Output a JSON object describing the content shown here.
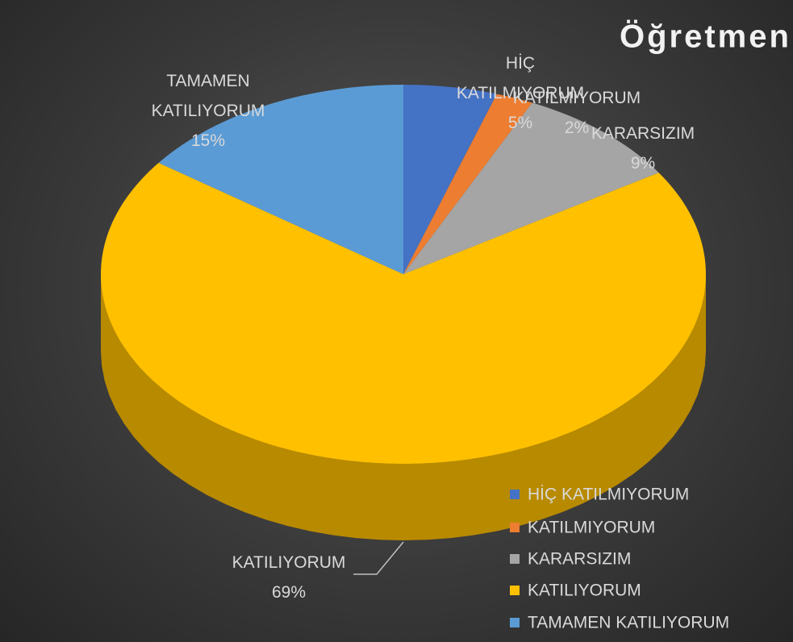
{
  "chart_data": {
    "type": "pie",
    "title": "Öğretmen",
    "categories": [
      "HİÇ KATILMIYORUM",
      "KATILMIYORUM",
      "KARARSIZIM",
      "KATILIYORUM",
      "TAMAMEN KATILIYORUM"
    ],
    "values": [
      5,
      2,
      9,
      69,
      15
    ],
    "value_labels": [
      "5%",
      "2%",
      "9%",
      "69%",
      "15%"
    ],
    "colors": [
      "#4472c4",
      "#ed7d31",
      "#a5a5a5",
      "#ffc000",
      "#5b9bd5"
    ],
    "legend": "bottom-right"
  }
}
